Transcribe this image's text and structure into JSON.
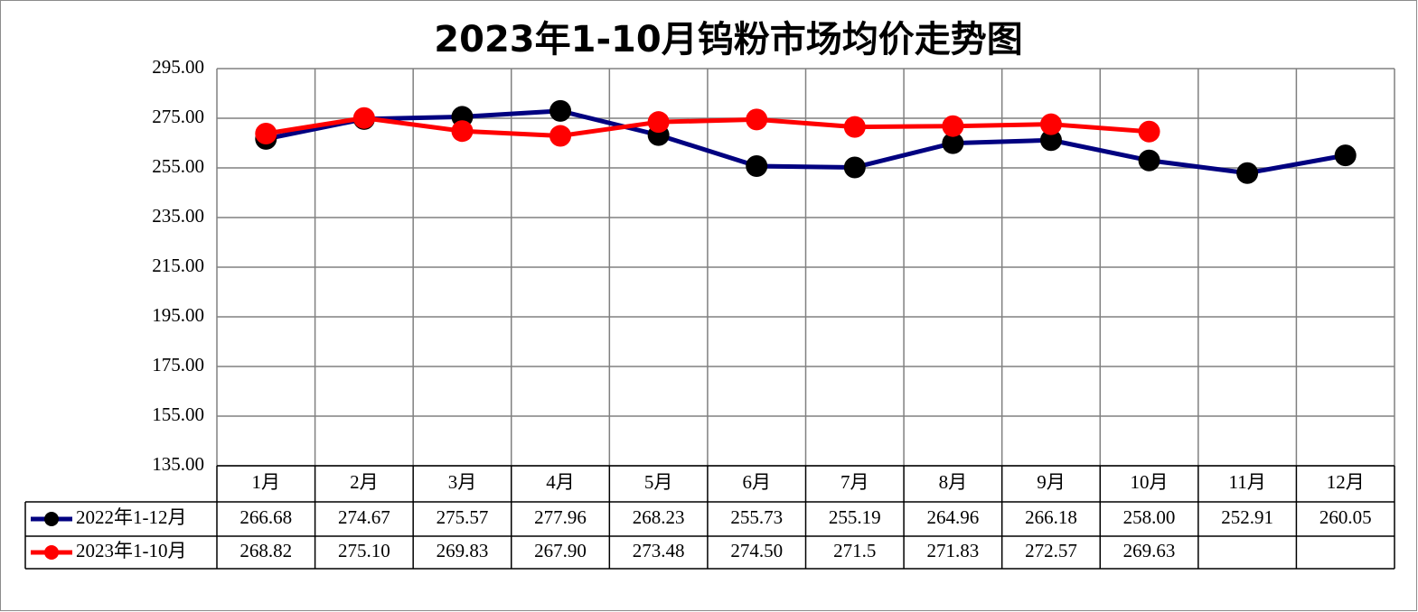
{
  "chart_data": {
    "type": "line",
    "title": "2023年1-10月钨粉市场均价走势图",
    "categories": [
      "1月",
      "2月",
      "3月",
      "4月",
      "5月",
      "6月",
      "7月",
      "8月",
      "9月",
      "10月",
      "11月",
      "12月"
    ],
    "series": [
      {
        "name": "2022年1-12月",
        "color": "#000080",
        "marker_color": "#000000",
        "values": [
          266.68,
          274.67,
          275.57,
          277.96,
          268.23,
          255.73,
          255.19,
          264.96,
          266.18,
          258.0,
          252.91,
          260.05
        ],
        "value_labels": [
          "266.68",
          "274.67",
          "275.57",
          "277.96",
          "268.23",
          "255.73",
          "255.19",
          "264.96",
          "266.18",
          "258.00",
          "252.91",
          "260.05"
        ]
      },
      {
        "name": "2023年1-10月",
        "color": "#ff0000",
        "marker_color": "#ff0000",
        "values": [
          268.82,
          275.1,
          269.83,
          267.9,
          273.48,
          274.5,
          271.5,
          271.83,
          272.57,
          269.63,
          null,
          null
        ],
        "value_labels": [
          "268.82",
          "275.10",
          "269.83",
          "267.90",
          "273.48",
          "274.50",
          "271.5",
          "271.83",
          "272.57",
          "269.63",
          null,
          null
        ]
      }
    ],
    "ylim": [
      135,
      295
    ],
    "yticks": [
      {
        "value": 135,
        "label": "135.00"
      },
      {
        "value": 155,
        "label": "155.00"
      },
      {
        "value": 175,
        "label": "175.00"
      },
      {
        "value": 195,
        "label": "195.00"
      },
      {
        "value": 215,
        "label": "215.00"
      },
      {
        "value": 235,
        "label": "235.00"
      },
      {
        "value": 255,
        "label": "255.00"
      },
      {
        "value": 275,
        "label": "275.00"
      },
      {
        "value": 295,
        "label": "295.00"
      }
    ],
    "grid": true,
    "data_table": true
  }
}
